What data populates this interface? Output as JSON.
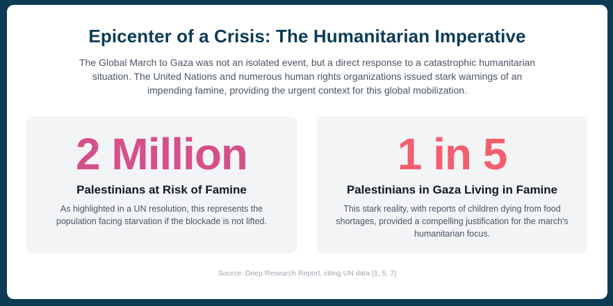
{
  "header": {
    "title": "Epicenter of a Crisis: The Humanitarian Imperative",
    "intro": "The Global March to Gaza was not an isolated event, but a direct response to a catastrophic humanitarian situation. The United Nations and numerous human rights organizations issued stark warnings of an impending famine, providing the urgent context for this global mobilization."
  },
  "stats": [
    {
      "number": "2 Million",
      "label": "Palestinians at Risk of Famine",
      "description": "As highlighted in a UN resolution, this represents the population facing starvation if the blockade is not lifted.",
      "color": "#d5508a"
    },
    {
      "number": "1 in 5",
      "label": "Palestinians in Gaza Living in Famine",
      "description": "This stark reality, with reports of children dying from food shortages, provided a compelling justification for the march's humanitarian focus.",
      "color": "#f25f6e"
    }
  ],
  "footer": {
    "source": "Source: Deep Research Report, citing UN data [1, 5, 7]"
  },
  "colors": {
    "background": "#0d3b56",
    "card": "#ffffff",
    "stat_box": "#f3f4f6",
    "title": "#0d3b56"
  }
}
